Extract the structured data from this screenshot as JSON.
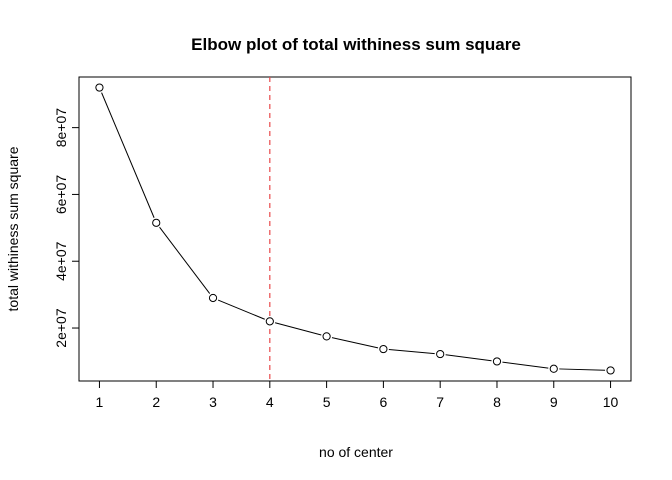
{
  "chart_data": {
    "type": "line",
    "title": "Elbow plot of total withiness sum square",
    "xlabel": "no of center",
    "ylabel": "total withiness sum square",
    "x": [
      1,
      2,
      3,
      4,
      5,
      6,
      7,
      8,
      9,
      10
    ],
    "y": [
      92000000,
      51500000,
      29000000,
      22000000,
      17500000,
      13700000,
      12200000,
      10000000,
      7800000,
      7300000
    ],
    "xlim": [
      0.64,
      10.36
    ],
    "ylim": [
      4140000,
      95160000
    ],
    "xticks": [
      1,
      2,
      3,
      4,
      5,
      6,
      7,
      8,
      9,
      10
    ],
    "yticks": [
      20000000,
      40000000,
      60000000,
      80000000
    ],
    "ytick_labels": [
      "2e+07",
      "4e+07",
      "6e+07",
      "8e+07"
    ],
    "vline": {
      "x": 4,
      "color": "#e8494b",
      "style": "dashed"
    },
    "line_color": "#000000",
    "marker": "open-circle",
    "grid": false
  }
}
